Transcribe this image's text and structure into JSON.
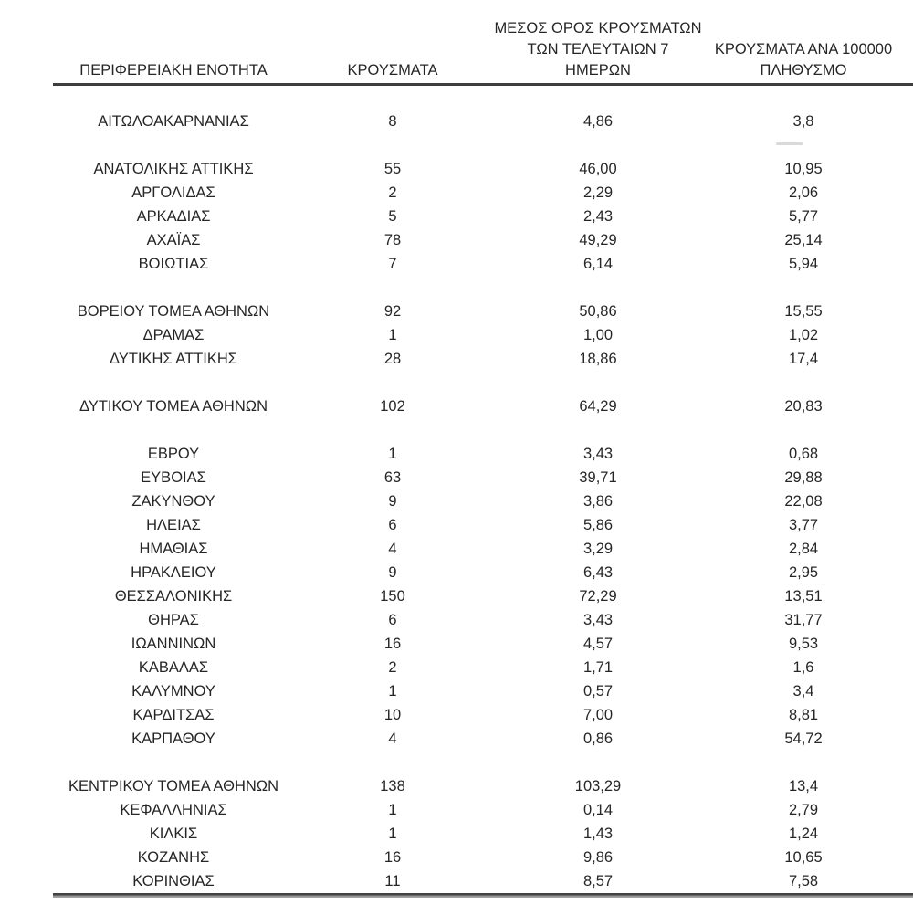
{
  "table": {
    "columns": [
      {
        "id": "region",
        "lines": [
          "ΠΕΡΙΦΕΡΕΙΑΚΗ ΕΝΟΤΗΤΑ"
        ]
      },
      {
        "id": "cases",
        "lines": [
          "ΚΡΟΥΣΜΑΤΑ"
        ]
      },
      {
        "id": "avg7",
        "lines": [
          "ΜΕΣΟΣ ΟΡΟΣ ΚΡΟΥΣΜΑΤΩΝ",
          "ΤΩΝ ΤΕΛΕΥΤΑΙΩΝ 7",
          "ΗΜΕΡΩΝ"
        ]
      },
      {
        "id": "per100k",
        "lines": [
          "ΚΡΟΥΣΜΑΤΑ ΑΝΑ 100000",
          "ΠΛΗΘΥΣΜΟ"
        ]
      }
    ],
    "groups": [
      {
        "rows": [
          {
            "region": "ΑΙΤΩΛΟΑΚΑΡΝΑΝΙΑΣ",
            "cases": "8",
            "avg7": "4,86",
            "per100k": "3,8"
          }
        ]
      },
      {
        "rows": [
          {
            "region": "ΑΝΑΤΟΛΙΚΗΣ ΑΤΤΙΚΗΣ",
            "cases": "55",
            "avg7": "46,00",
            "per100k": "10,95"
          },
          {
            "region": "ΑΡΓΟΛΙΔΑΣ",
            "cases": "2",
            "avg7": "2,29",
            "per100k": "2,06"
          },
          {
            "region": "ΑΡΚΑΔΙΑΣ",
            "cases": "5",
            "avg7": "2,43",
            "per100k": "5,77"
          },
          {
            "region": "ΑΧΑΪΑΣ",
            "cases": "78",
            "avg7": "49,29",
            "per100k": "25,14"
          },
          {
            "region": "ΒΟΙΩΤΙΑΣ",
            "cases": "7",
            "avg7": "6,14",
            "per100k": "5,94"
          }
        ]
      },
      {
        "rows": [
          {
            "region": "ΒΟΡΕΙΟΥ ΤΟΜΕΑ ΑΘΗΝΩΝ",
            "cases": "92",
            "avg7": "50,86",
            "per100k": "15,55"
          },
          {
            "region": "ΔΡΑΜΑΣ",
            "cases": "1",
            "avg7": "1,00",
            "per100k": "1,02"
          },
          {
            "region": "ΔΥΤΙΚΗΣ ΑΤΤΙΚΗΣ",
            "cases": "28",
            "avg7": "18,86",
            "per100k": "17,4"
          }
        ]
      },
      {
        "rows": [
          {
            "region": "ΔΥΤΙΚΟΥ ΤΟΜΕΑ ΑΘΗΝΩΝ",
            "cases": "102",
            "avg7": "64,29",
            "per100k": "20,83"
          }
        ]
      },
      {
        "rows": [
          {
            "region": "ΕΒΡΟΥ",
            "cases": "1",
            "avg7": "3,43",
            "per100k": "0,68"
          },
          {
            "region": "ΕΥΒΟΙΑΣ",
            "cases": "63",
            "avg7": "39,71",
            "per100k": "29,88"
          },
          {
            "region": "ΖΑΚΥΝΘΟΥ",
            "cases": "9",
            "avg7": "3,86",
            "per100k": "22,08"
          },
          {
            "region": "ΗΛΕΙΑΣ",
            "cases": "6",
            "avg7": "5,86",
            "per100k": "3,77"
          },
          {
            "region": "ΗΜΑΘΙΑΣ",
            "cases": "4",
            "avg7": "3,29",
            "per100k": "2,84"
          },
          {
            "region": "ΗΡΑΚΛΕΙΟΥ",
            "cases": "9",
            "avg7": "6,43",
            "per100k": "2,95"
          },
          {
            "region": "ΘΕΣΣΑΛΟΝΙΚΗΣ",
            "cases": "150",
            "avg7": "72,29",
            "per100k": "13,51"
          },
          {
            "region": "ΘΗΡΑΣ",
            "cases": "6",
            "avg7": "3,43",
            "per100k": "31,77"
          },
          {
            "region": "ΙΩΑΝΝΙΝΩΝ",
            "cases": "16",
            "avg7": "4,57",
            "per100k": "9,53"
          },
          {
            "region": "ΚΑΒΑΛΑΣ",
            "cases": "2",
            "avg7": "1,71",
            "per100k": "1,6"
          },
          {
            "region": "ΚΑΛΥΜΝΟΥ",
            "cases": "1",
            "avg7": "0,57",
            "per100k": "3,4"
          },
          {
            "region": "ΚΑΡΔΙΤΣΑΣ",
            "cases": "10",
            "avg7": "7,00",
            "per100k": "8,81"
          },
          {
            "region": "ΚΑΡΠΑΘΟΥ",
            "cases": "4",
            "avg7": "0,86",
            "per100k": "54,72"
          }
        ]
      },
      {
        "rows": [
          {
            "region": "ΚΕΝΤΡΙΚΟΥ ΤΟΜΕΑ ΑΘΗΝΩΝ",
            "cases": "138",
            "avg7": "103,29",
            "per100k": "13,4"
          },
          {
            "region": "ΚΕΦΑΛΛΗΝΙΑΣ",
            "cases": "1",
            "avg7": "0,14",
            "per100k": "2,79"
          },
          {
            "region": "ΚΙΛΚΙΣ",
            "cases": "1",
            "avg7": "1,43",
            "per100k": "1,24"
          },
          {
            "region": "ΚΟΖΑΝΗΣ",
            "cases": "16",
            "avg7": "9,86",
            "per100k": "10,65"
          },
          {
            "region": "ΚΟΡΙΝΘΙΑΣ",
            "cases": "11",
            "avg7": "8,57",
            "per100k": "7,58"
          }
        ]
      }
    ],
    "colors": {
      "text": "#262626",
      "header_rule": "#3d3d3d",
      "bottom_rule_dark": "#424242",
      "bottom_rule_light": "#a6a6a6",
      "background": "#ffffff"
    }
  }
}
